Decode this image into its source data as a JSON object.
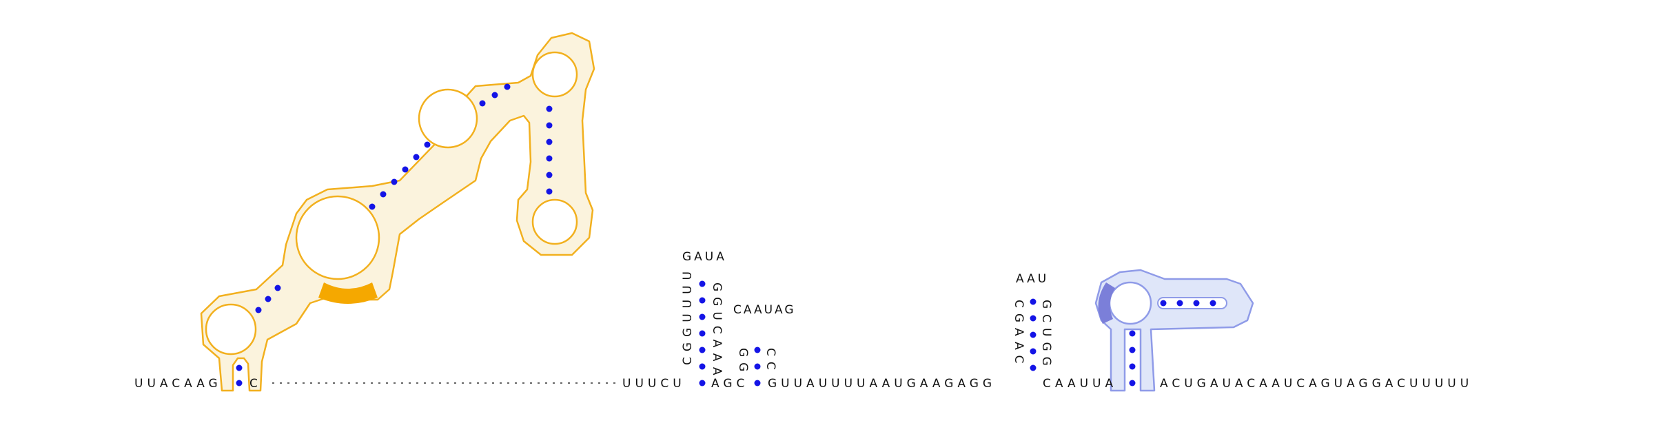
{
  "colors": {
    "outline_orange": "#f2b01e",
    "fill_orange": "#fbf3dd",
    "highlight_orange": "#f5a800",
    "outline_blue": "#8f9be8",
    "fill_blue": "#dfe6f9",
    "highlight_blue": "#7b7fd9",
    "pair_dot": "#1414e6",
    "backbone": "#333333",
    "text": "#111111"
  },
  "strand": {
    "left": "UUACAAG",
    "gap_after_stem": "C",
    "middle_1": "UUUCU",
    "middle_2": "AGC",
    "middle_3": "GUUAUUUUAAUGAAGAGG",
    "middle_4": "CAAUUA",
    "right": "ACUGAUACAAUCAGUAGGACUUUUU"
  },
  "hairpins": [
    {
      "name": "tall-hairpin",
      "left_stem": "CGGUUUU",
      "loop": "GAUA",
      "right_stem": "GGUCAAA"
    },
    {
      "name": "small-hairpin",
      "left_stem": "GG",
      "loop": "CAAUAG",
      "right_stem": "CC"
    },
    {
      "name": "right-hairpin",
      "left_stem": "CGAAC",
      "loop": "AAU",
      "right_stem": "GCUGG"
    }
  ]
}
